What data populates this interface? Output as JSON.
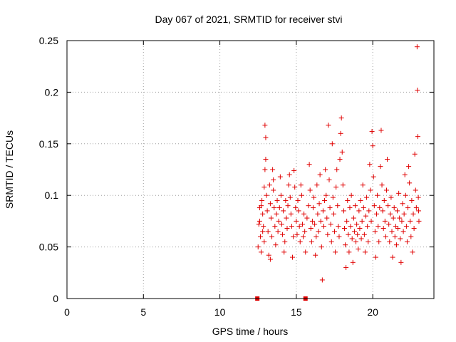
{
  "chart_data": {
    "type": "scatter",
    "title": "Day 067 of 2021, SRMTID for receiver stvi",
    "xlabel": "GPS time / hours",
    "ylabel": "SRMTID / TECUs",
    "xlim": [
      0,
      24
    ],
    "ylim": [
      0,
      0.25
    ],
    "xticks": [
      0,
      5,
      10,
      15,
      20
    ],
    "xtick_labels": [
      "0",
      "5",
      "10",
      "15",
      "20"
    ],
    "yticks": [
      0,
      0.05,
      0.1,
      0.15,
      0.2,
      0.25
    ],
    "ytick_labels": [
      "0",
      "0.05",
      "0.1",
      "0.15",
      "0.2",
      "0.25"
    ],
    "grid": true,
    "marker": "plus",
    "color": "#e00000",
    "zero_markers": [
      12.45,
      15.6
    ],
    "series": [
      {
        "name": "SRMTID",
        "points": [
          [
            12.5,
            0.05
          ],
          [
            12.55,
            0.072
          ],
          [
            12.6,
            0.088
          ],
          [
            12.65,
            0.06
          ],
          [
            12.7,
            0.045
          ],
          [
            12.75,
            0.095
          ],
          [
            12.8,
            0.082
          ],
          [
            12.85,
            0.07
          ],
          [
            12.9,
            0.108
          ],
          [
            12.95,
            0.125
          ],
          [
            12.6,
            0.075
          ],
          [
            12.7,
            0.09
          ],
          [
            12.8,
            0.065
          ],
          [
            12.9,
            0.055
          ],
          [
            12.95,
            0.168
          ],
          [
            13.0,
            0.156
          ],
          [
            13.0,
            0.135
          ],
          [
            13.05,
            0.1
          ],
          [
            13.1,
            0.085
          ],
          [
            13.15,
            0.065
          ],
          [
            13.2,
            0.042
          ],
          [
            13.25,
            0.11
          ],
          [
            13.3,
            0.092
          ],
          [
            13.35,
            0.078
          ],
          [
            13.4,
            0.06
          ],
          [
            13.45,
            0.125
          ],
          [
            13.5,
            0.105
          ],
          [
            13.55,
            0.088
          ],
          [
            13.6,
            0.07
          ],
          [
            13.65,
            0.052
          ],
          [
            13.3,
            0.038
          ],
          [
            13.5,
            0.115
          ],
          [
            13.7,
            0.082
          ],
          [
            13.75,
            0.095
          ],
          [
            13.8,
            0.065
          ],
          [
            13.85,
            0.075
          ],
          [
            13.9,
            0.088
          ],
          [
            13.95,
            0.118
          ],
          [
            14.0,
            0.1
          ],
          [
            14.05,
            0.072
          ],
          [
            14.1,
            0.062
          ],
          [
            14.15,
            0.085
          ],
          [
            14.2,
            0.045
          ],
          [
            14.25,
            0.055
          ],
          [
            14.3,
            0.095
          ],
          [
            14.35,
            0.078
          ],
          [
            14.4,
            0.068
          ],
          [
            14.45,
            0.09
          ],
          [
            14.5,
            0.11
          ],
          [
            14.55,
            0.12
          ],
          [
            14.6,
            0.098
          ],
          [
            14.65,
            0.082
          ],
          [
            14.7,
            0.07
          ],
          [
            14.75,
            0.04
          ],
          [
            14.8,
            0.06
          ],
          [
            14.85,
            0.124
          ],
          [
            14.9,
            0.108
          ],
          [
            14.95,
            0.088
          ],
          [
            15.0,
            0.075
          ],
          [
            15.05,
            0.062
          ],
          [
            15.1,
            0.095
          ],
          [
            15.15,
            0.085
          ],
          [
            15.2,
            0.07
          ],
          [
            15.25,
            0.055
          ],
          [
            15.3,
            0.11
          ],
          [
            15.35,
            0.1
          ],
          [
            15.4,
            0.072
          ],
          [
            15.45,
            0.06
          ],
          [
            15.5,
            0.082
          ],
          [
            15.55,
            0.065
          ],
          [
            15.6,
            0.045
          ],
          [
            15.7,
            0.078
          ],
          [
            15.8,
            0.09
          ],
          [
            15.85,
            0.13
          ],
          [
            15.9,
            0.105
          ],
          [
            15.95,
            0.068
          ],
          [
            16.0,
            0.055
          ],
          [
            16.05,
            0.075
          ],
          [
            16.1,
            0.088
          ],
          [
            16.15,
            0.098
          ],
          [
            16.2,
            0.072
          ],
          [
            16.25,
            0.042
          ],
          [
            16.3,
            0.06
          ],
          [
            16.35,
            0.11
          ],
          [
            16.4,
            0.082
          ],
          [
            16.45,
            0.065
          ],
          [
            16.5,
            0.092
          ],
          [
            16.55,
            0.12
          ],
          [
            16.6,
            0.075
          ],
          [
            16.65,
            0.05
          ],
          [
            16.7,
            0.018
          ],
          [
            16.75,
            0.085
          ],
          [
            16.8,
            0.07
          ],
          [
            16.85,
            0.095
          ],
          [
            16.9,
            0.125
          ],
          [
            16.95,
            0.1
          ],
          [
            17.0,
            0.078
          ],
          [
            17.05,
            0.062
          ],
          [
            17.1,
            0.168
          ],
          [
            17.15,
            0.115
          ],
          [
            17.2,
            0.088
          ],
          [
            17.25,
            0.072
          ],
          [
            17.3,
            0.055
          ],
          [
            17.35,
            0.15
          ],
          [
            17.4,
            0.098
          ],
          [
            17.45,
            0.082
          ],
          [
            17.5,
            0.065
          ],
          [
            17.55,
            0.045
          ],
          [
            17.6,
            0.108
          ],
          [
            17.65,
            0.125
          ],
          [
            17.7,
            0.09
          ],
          [
            17.75,
            0.07
          ],
          [
            17.8,
            0.06
          ],
          [
            17.85,
            0.135
          ],
          [
            17.9,
            0.16
          ],
          [
            17.95,
            0.175
          ],
          [
            18.0,
            0.142
          ],
          [
            18.05,
            0.11
          ],
          [
            18.1,
            0.085
          ],
          [
            18.15,
            0.068
          ],
          [
            18.2,
            0.052
          ],
          [
            18.25,
            0.03
          ],
          [
            18.3,
            0.075
          ],
          [
            18.35,
            0.095
          ],
          [
            18.4,
            0.062
          ],
          [
            18.45,
            0.045
          ],
          [
            18.5,
            0.088
          ],
          [
            18.55,
            0.07
          ],
          [
            18.6,
            0.1
          ],
          [
            18.65,
            0.058
          ],
          [
            18.7,
            0.035
          ],
          [
            18.75,
            0.078
          ],
          [
            18.8,
            0.065
          ],
          [
            18.85,
            0.09
          ],
          [
            18.9,
            0.055
          ],
          [
            18.95,
            0.072
          ],
          [
            19.0,
            0.062
          ],
          [
            19.05,
            0.048
          ],
          [
            19.1,
            0.085
          ],
          [
            19.15,
            0.068
          ],
          [
            19.2,
            0.095
          ],
          [
            19.25,
            0.058
          ],
          [
            19.3,
            0.075
          ],
          [
            19.35,
            0.11
          ],
          [
            19.4,
            0.088
          ],
          [
            19.45,
            0.062
          ],
          [
            19.5,
            0.045
          ],
          [
            19.55,
            0.08
          ],
          [
            19.6,
            0.098
          ],
          [
            19.65,
            0.07
          ],
          [
            19.7,
            0.055
          ],
          [
            19.75,
            0.085
          ],
          [
            19.8,
            0.13
          ],
          [
            19.85,
            0.105
          ],
          [
            19.9,
            0.075
          ],
          [
            19.95,
            0.162
          ],
          [
            20.0,
            0.148
          ],
          [
            20.05,
            0.118
          ],
          [
            20.1,
            0.09
          ],
          [
            20.15,
            0.065
          ],
          [
            20.2,
            0.04
          ],
          [
            20.25,
            0.082
          ],
          [
            20.3,
            0.1
          ],
          [
            20.35,
            0.07
          ],
          [
            20.4,
            0.055
          ],
          [
            20.45,
            0.088
          ],
          [
            20.5,
            0.128
          ],
          [
            20.55,
            0.163
          ],
          [
            20.6,
            0.11
          ],
          [
            20.65,
            0.085
          ],
          [
            20.7,
            0.068
          ],
          [
            20.75,
            0.095
          ],
          [
            20.8,
            0.075
          ],
          [
            20.85,
            0.06
          ],
          [
            20.9,
            0.105
          ],
          [
            20.95,
            0.135
          ],
          [
            21.0,
            0.09
          ],
          [
            21.05,
            0.072
          ],
          [
            21.1,
            0.055
          ],
          [
            21.15,
            0.082
          ],
          [
            21.2,
            0.098
          ],
          [
            21.25,
            0.065
          ],
          [
            21.3,
            0.04
          ],
          [
            21.35,
            0.078
          ],
          [
            21.4,
            0.088
          ],
          [
            21.45,
            0.06
          ],
          [
            21.5,
            0.07
          ],
          [
            21.55,
            0.052
          ],
          [
            21.6,
            0.085
          ],
          [
            21.65,
            0.068
          ],
          [
            21.7,
            0.102
          ],
          [
            21.75,
            0.078
          ],
          [
            21.8,
            0.058
          ],
          [
            21.85,
            0.035
          ],
          [
            21.9,
            0.075
          ],
          [
            21.95,
            0.092
          ],
          [
            22.0,
            0.065
          ],
          [
            22.05,
            0.082
          ],
          [
            22.1,
            0.12
          ],
          [
            22.15,
            0.1
          ],
          [
            22.2,
            0.07
          ],
          [
            22.25,
            0.055
          ],
          [
            22.3,
            0.088
          ],
          [
            22.35,
            0.128
          ],
          [
            22.4,
            0.112
          ],
          [
            22.45,
            0.075
          ],
          [
            22.5,
            0.06
          ],
          [
            22.55,
            0.095
          ],
          [
            22.6,
            0.045
          ],
          [
            22.65,
            0.082
          ],
          [
            22.7,
            0.068
          ],
          [
            22.75,
            0.14
          ],
          [
            22.8,
            0.105
          ],
          [
            22.85,
            0.088
          ],
          [
            22.9,
            0.244
          ],
          [
            22.92,
            0.202
          ],
          [
            22.95,
            0.157
          ],
          [
            22.98,
            0.098
          ],
          [
            23.0,
            0.085
          ],
          [
            23.02,
            0.075
          ]
        ]
      }
    ]
  }
}
